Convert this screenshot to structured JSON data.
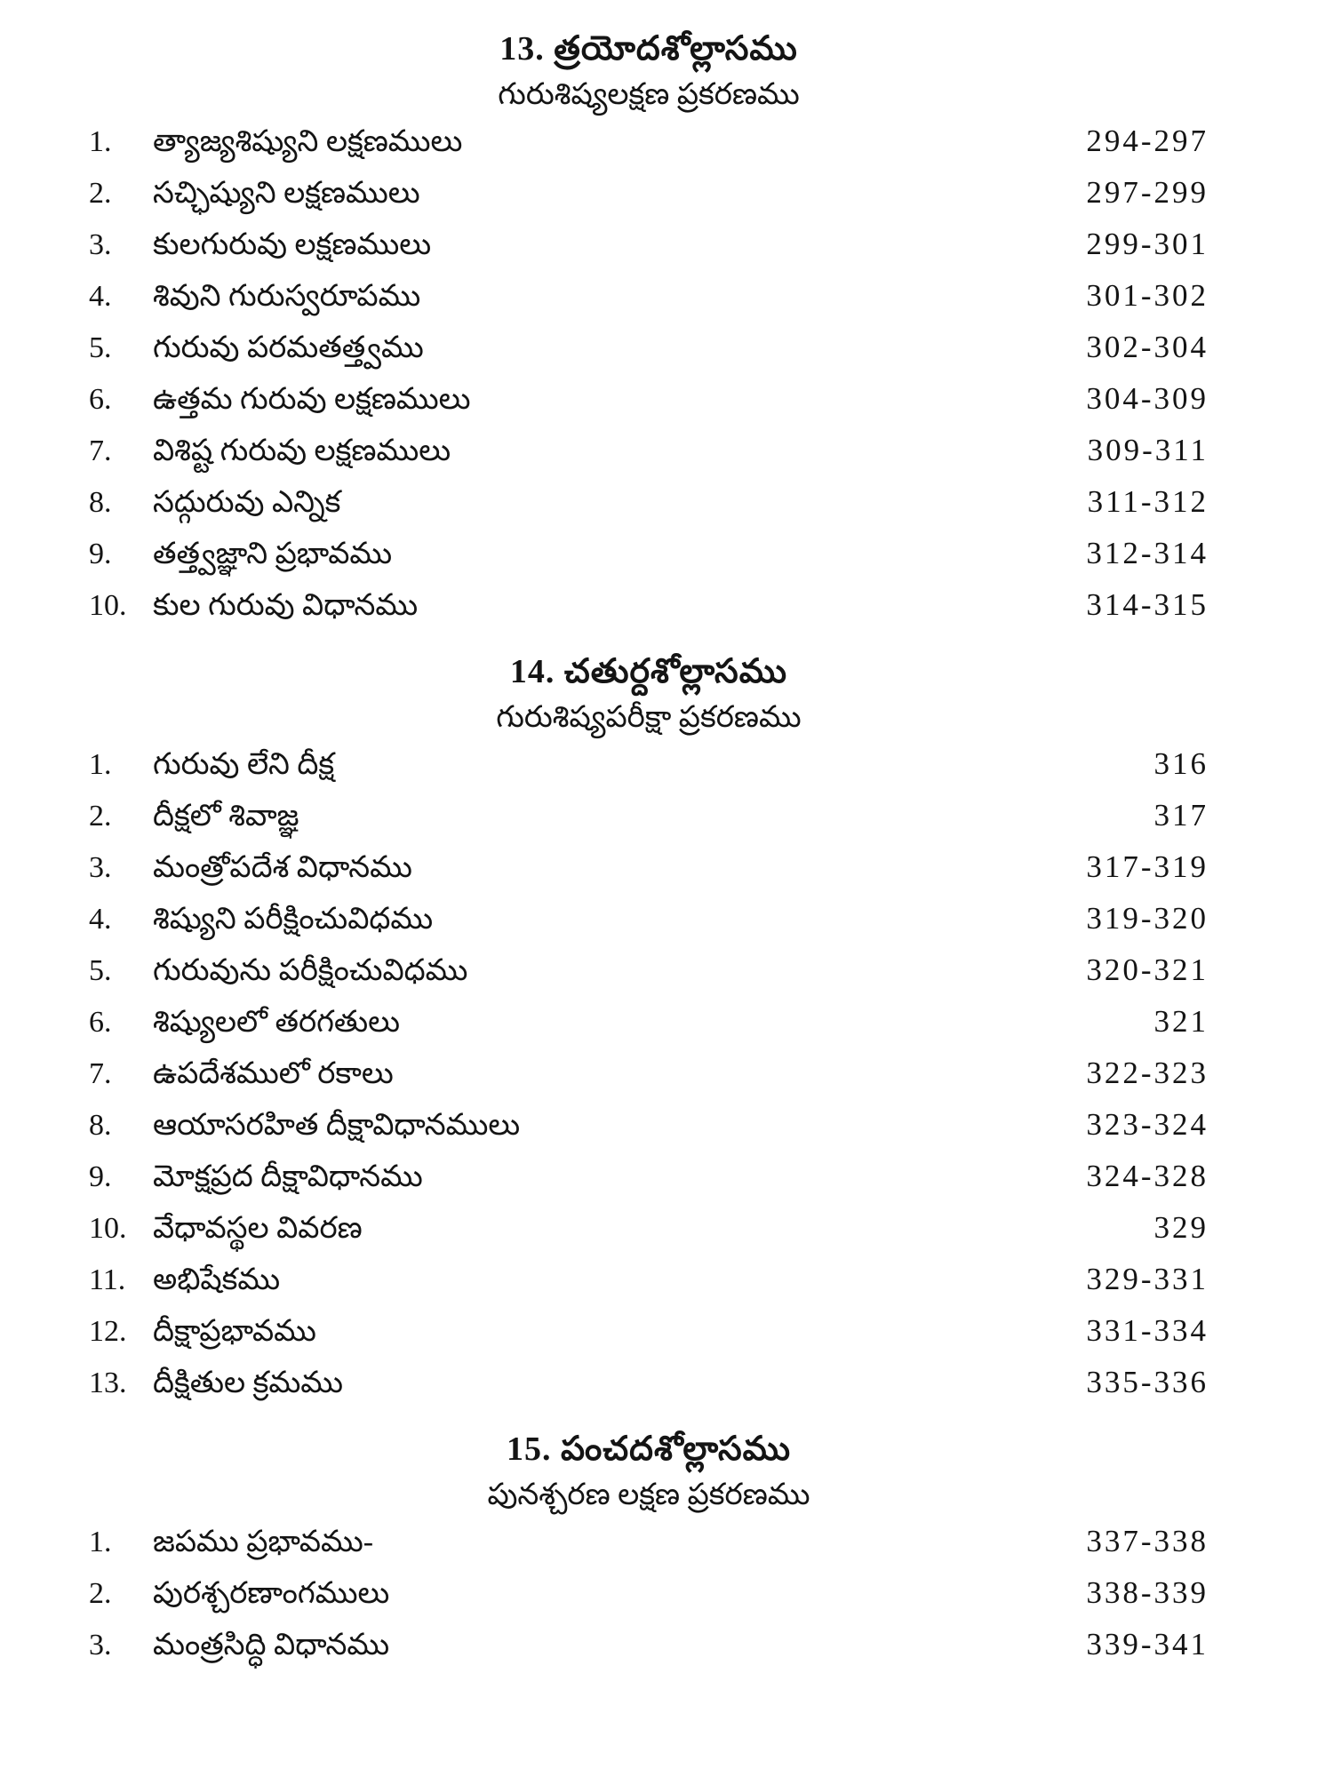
{
  "page": {
    "background_color": "#ffffff",
    "text_color": "#141414",
    "kind": "book-table-of-contents-scan",
    "language": "Telugu"
  },
  "sections": [
    {
      "heading": "13. త్రయోదశోల్లాసము",
      "subtitle": "గురుశిష్యలక్షణ ప్రకరణము",
      "items": [
        {
          "num": "1.",
          "title": "త్యాజ్యశిష్యుని లక్షణములు",
          "pages": "294-297"
        },
        {
          "num": "2.",
          "title": "సచ్ఛిష్యుని లక్షణములు",
          "pages": "297-299"
        },
        {
          "num": "3.",
          "title": "కులగురువు లక్షణములు",
          "pages": "299-301"
        },
        {
          "num": "4.",
          "title": "శివుని గురుస్వరూపము",
          "pages": "301-302"
        },
        {
          "num": "5.",
          "title": "గురువు పరమతత్త్వము",
          "pages": "302-304"
        },
        {
          "num": "6.",
          "title": "ఉత్తమ గురువు లక్షణములు",
          "pages": "304-309"
        },
        {
          "num": "7.",
          "title": "విశిష్ట గురువు లక్షణములు",
          "pages": "309-311"
        },
        {
          "num": "8.",
          "title": "సద్గురువు ఎన్నిక",
          "pages": "311-312"
        },
        {
          "num": "9.",
          "title": "తత్త్వజ్ఞాని ప్రభావము",
          "pages": "312-314"
        },
        {
          "num": "10.",
          "title": "కుల గురువు విధానము",
          "pages": "314-315"
        }
      ]
    },
    {
      "heading": "14. చతుర్దశోల్లాసము",
      "subtitle": "గురుశిష్యపరీక్షా ప్రకరణము",
      "items": [
        {
          "num": "1.",
          "title": "గురువు లేని దీక్ష",
          "pages": "316"
        },
        {
          "num": "2.",
          "title": "దీక్షలో శివాజ్ఞ",
          "pages": "317"
        },
        {
          "num": "3.",
          "title": "మంత్రోపదేశ విధానము",
          "pages": "317-319"
        },
        {
          "num": "4.",
          "title": "శిష్యుని పరీక్షించువిధము",
          "pages": "319-320"
        },
        {
          "num": "5.",
          "title": "గురువును పరీక్షించువిధము",
          "pages": "320-321"
        },
        {
          "num": "6.",
          "title": "శిష్యులలో తరగతులు",
          "pages": "321"
        },
        {
          "num": "7.",
          "title": "ఉపదేశములో రకాలు",
          "pages": "322-323"
        },
        {
          "num": "8.",
          "title": "ఆయాసరహిత దీక్షావిధానములు",
          "pages": "323-324"
        },
        {
          "num": "9.",
          "title": "మోక్షప్రద దీక్షావిధానము",
          "pages": "324-328"
        },
        {
          "num": "10.",
          "title": "వేధావస్థల వివరణ",
          "pages": "329"
        },
        {
          "num": "11.",
          "title": "అభిషేకము",
          "pages": "329-331"
        },
        {
          "num": "12.",
          "title": "దీక్షాప్రభావము",
          "pages": "331-334"
        },
        {
          "num": "13.",
          "title": "దీక్షితుల క్రమము",
          "pages": "335-336"
        }
      ]
    },
    {
      "heading": "15. పంచదశోల్లాసము",
      "subtitle": "పునశ్చరణ లక్షణ ప్రకరణము",
      "items": [
        {
          "num": "1.",
          "title": "జపము ప్రభావము-",
          "pages": "337-338"
        },
        {
          "num": "2.",
          "title": "పురశ్చరణాంగములు",
          "pages": "338-339"
        },
        {
          "num": "3.",
          "title": "మంత్రసిద్ధి విధానము",
          "pages": "339-341"
        }
      ]
    }
  ]
}
